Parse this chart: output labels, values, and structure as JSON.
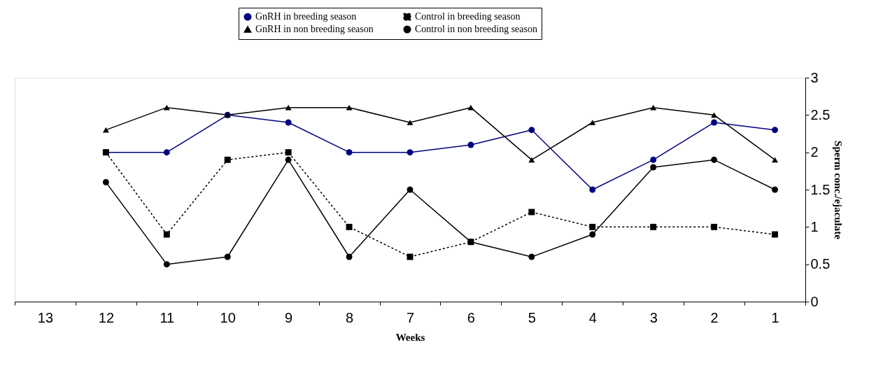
{
  "chart_data": {
    "type": "line",
    "xlabel": "Weeks",
    "ylabel": "Sperm conc./ejaculate",
    "categories": [
      "13",
      "12",
      "11",
      "10",
      "9",
      "8",
      "7",
      "6",
      "5",
      "4",
      "3",
      "2",
      "1"
    ],
    "series": [
      {
        "name": "GnRH in breeding season",
        "color": "#000080",
        "marker": "circle",
        "line_style": "solid",
        "values": [
          null,
          2.0,
          2.0,
          2.5,
          2.4,
          2.0,
          2.0,
          2.1,
          2.3,
          1.5,
          1.9,
          2.4,
          2.3
        ]
      },
      {
        "name": "Control in breeding season",
        "color": "#000000",
        "marker": "square",
        "line_style": "dotted",
        "values": [
          null,
          2.0,
          0.9,
          1.9,
          2.0,
          1.0,
          0.6,
          0.8,
          1.2,
          1.0,
          1.0,
          1.0,
          0.9
        ]
      },
      {
        "name": "GnRH in non breeding season",
        "color": "#000000",
        "marker": "triangle",
        "line_style": "solid",
        "values": [
          null,
          2.3,
          2.6,
          2.5,
          2.6,
          2.6,
          2.4,
          2.6,
          1.9,
          2.4,
          2.6,
          2.5,
          1.9
        ]
      },
      {
        "name": "Control in non breeding season",
        "color": "#000000",
        "marker": "circle",
        "line_style": "solid",
        "values": [
          null,
          1.6,
          0.5,
          0.6,
          1.9,
          0.6,
          1.5,
          0.8,
          0.6,
          0.9,
          1.8,
          1.9,
          1.5
        ]
      }
    ],
    "ylim": [
      0,
      3
    ],
    "yticks": [
      0,
      0.5,
      1,
      1.5,
      2,
      2.5,
      3
    ],
    "grid": false,
    "legend": "top"
  }
}
